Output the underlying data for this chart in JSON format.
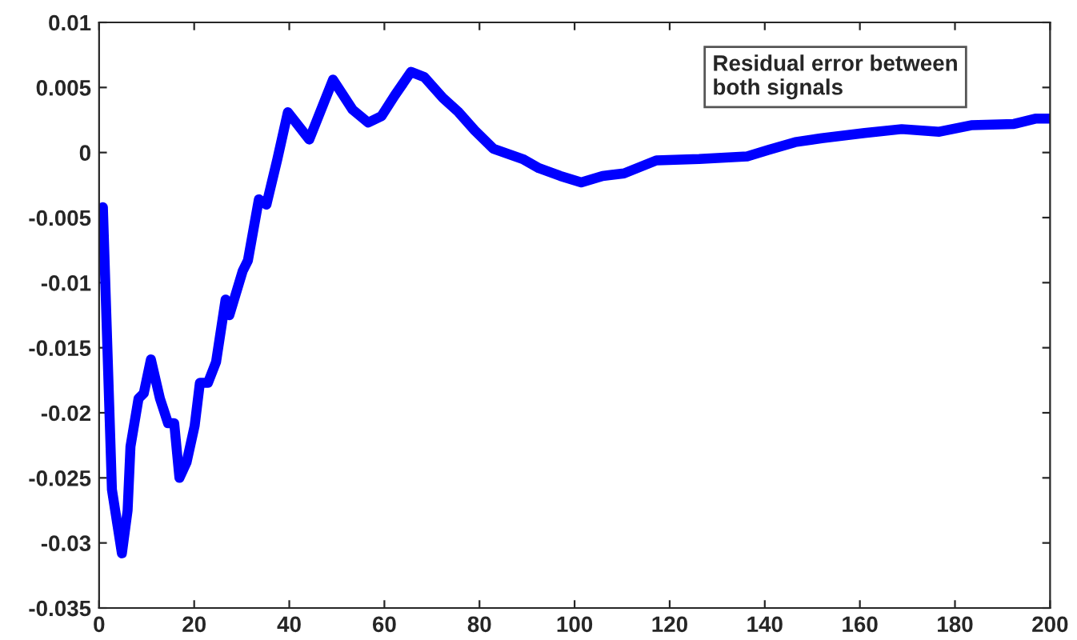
{
  "chart_data": {
    "type": "line",
    "x": [
      0.8,
      2.7,
      4.8,
      6,
      6.6,
      8.3,
      9.4,
      10.9,
      12.8,
      14.5,
      15.8,
      16.9,
      18.4,
      20.1,
      21.2,
      22.9,
      24.6,
      26.6,
      27.4,
      30.2,
      31.3,
      33.6,
      35.2,
      37.5,
      39.7,
      44.2,
      49.2,
      53.3,
      56.6,
      59.4,
      62.2,
      65.6,
      68.4,
      72.3,
      75.6,
      79,
      82.9,
      89.1,
      92.5,
      97,
      101.4,
      105.9,
      110.4,
      117.2,
      126.2,
      136.3,
      140.7,
      146.4,
      152,
      161,
      168.8,
      176.7,
      183.4,
      192.4,
      196.9,
      200
    ],
    "series": [
      {
        "color": "#0000ff",
        "values": [
          -0.0042,
          -0.0259,
          -0.0308,
          -0.0275,
          -0.0226,
          -0.0189,
          -0.0185,
          -0.0159,
          -0.0189,
          -0.0208,
          -0.0208,
          -0.025,
          -0.0238,
          -0.021,
          -0.0177,
          -0.0177,
          -0.0161,
          -0.0113,
          -0.0125,
          -0.0091,
          -0.0083,
          -0.0036,
          -0.004,
          -0.0005,
          0.0031,
          0.001,
          0.0056,
          0.0033,
          0.0023,
          0.0028,
          0.0044,
          0.0062,
          0.0058,
          0.0042,
          0.0031,
          0.0017,
          0.0003,
          -0.0005,
          -0.0012,
          -0.0018,
          -0.0023,
          -0.0018,
          -0.0016,
          -0.0006,
          -0.0005,
          -0.0003,
          0.0002,
          0.0008,
          0.0011,
          0.0015,
          0.0018,
          0.0016,
          0.0021,
          0.0022,
          0.0026,
          0.0026
        ]
      }
    ],
    "annotations": [
      "Residual error between\nboth signals"
    ],
    "xlim": [
      0,
      200
    ],
    "xticks": [
      0,
      20,
      40,
      60,
      80,
      100,
      120,
      140,
      160,
      180,
      200
    ],
    "ylim": [
      -0.035,
      0.01
    ],
    "yticks": [
      -0.035,
      -0.03,
      -0.025,
      -0.02,
      -0.015,
      -0.01,
      -0.005,
      0,
      0.005,
      0.01
    ],
    "grid": false,
    "marker": "none",
    "line_style": "solid"
  }
}
